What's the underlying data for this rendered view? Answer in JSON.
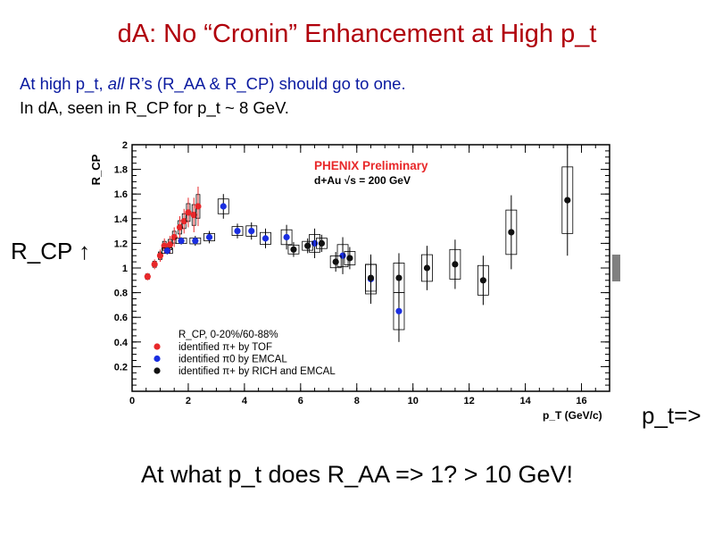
{
  "slide": {
    "title": "dА: No “Cronin” Enhancement at High p_t",
    "line1_pre": "At high p_t, ",
    "line1_em": "all",
    "line1_post": " R’s (R_AA & R_CP) should go to one.",
    "line2": "In dA, seen in R_CP for p_t ~ 8 GeV.",
    "y_side_label": "R_CP ↑",
    "x_side_label": "p_t=>",
    "bottom_question": "At what p_t does R_AA => 1?  > 10 GeV!"
  },
  "chart_data": {
    "type": "scatter",
    "title": "PHENIX Preliminary",
    "subtitle": "d+Au √s = 200 GeV",
    "ylabel": "R_CP",
    "xlabel": "p_T (GeV/c)",
    "xlim": [
      0,
      17
    ],
    "ylim": [
      0,
      2
    ],
    "x_ticks": [
      0,
      2,
      4,
      6,
      8,
      10,
      12,
      14,
      16
    ],
    "y_ticks": [
      0.2,
      0.4,
      0.6,
      0.8,
      1,
      1.2,
      1.4,
      1.6,
      1.8,
      2
    ],
    "legend_title": "R_CP, 0-20%/60-88%",
    "legend_position": "bottom-left",
    "colors": {
      "tof": "#e8282a",
      "emcal": "#1a2ee0",
      "rich": "#111111",
      "gray_band": "#808080"
    },
    "series": [
      {
        "name": "identified π+ by TOF",
        "points": [
          [
            0.55,
            0.93
          ],
          [
            0.8,
            1.03
          ],
          [
            1.0,
            1.1
          ],
          [
            1.15,
            1.18
          ],
          [
            1.35,
            1.19
          ],
          [
            1.5,
            1.25
          ],
          [
            1.7,
            1.33
          ],
          [
            1.85,
            1.38
          ],
          [
            2.0,
            1.45
          ],
          [
            2.2,
            1.43
          ],
          [
            2.35,
            1.5
          ]
        ],
        "err": [
          0.03,
          0.04,
          0.05,
          0.06,
          0.07,
          0.08,
          0.09,
          0.1,
          0.12,
          0.14,
          0.16
        ]
      },
      {
        "name": "identified π0 by EMCAL",
        "points": [
          [
            1.25,
            1.14
          ],
          [
            1.75,
            1.22
          ],
          [
            2.25,
            1.22
          ],
          [
            2.75,
            1.25
          ],
          [
            3.25,
            1.5
          ],
          [
            3.75,
            1.3
          ],
          [
            4.25,
            1.3
          ],
          [
            4.75,
            1.24
          ],
          [
            5.5,
            1.25
          ],
          [
            6.5,
            1.2
          ],
          [
            7.5,
            1.1
          ],
          [
            8.5,
            0.91
          ],
          [
            9.5,
            0.65
          ]
        ],
        "err": [
          0.03,
          0.03,
          0.04,
          0.05,
          0.1,
          0.06,
          0.07,
          0.08,
          0.1,
          0.12,
          0.15,
          0.2,
          0.25
        ]
      },
      {
        "name": "identified π+ by RICH and EMCAL",
        "points": [
          [
            5.75,
            1.15
          ],
          [
            6.25,
            1.18
          ],
          [
            6.75,
            1.2
          ],
          [
            7.25,
            1.05
          ],
          [
            7.75,
            1.08
          ],
          [
            8.5,
            0.92
          ],
          [
            9.5,
            0.92
          ],
          [
            10.5,
            1.0
          ],
          [
            11.5,
            1.03
          ],
          [
            12.5,
            0.9
          ],
          [
            13.5,
            1.29
          ],
          [
            15.5,
            1.55
          ]
        ],
        "err": [
          0.06,
          0.06,
          0.07,
          0.08,
          0.09,
          0.18,
          0.2,
          0.18,
          0.2,
          0.2,
          0.3,
          0.45
        ]
      }
    ]
  }
}
